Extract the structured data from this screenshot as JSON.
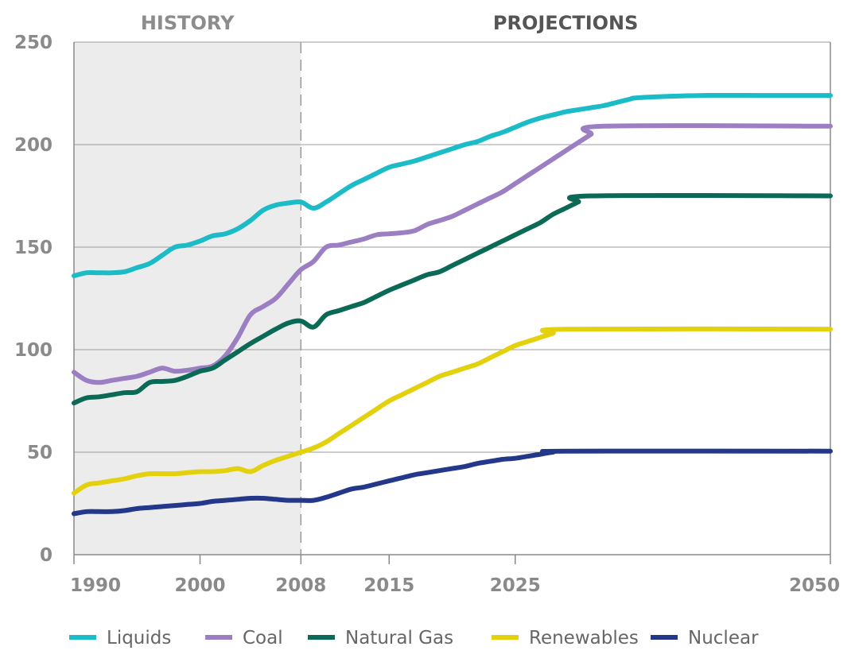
{
  "chart_data": {
    "type": "line",
    "title": "",
    "xlabel": "",
    "ylabel": "",
    "xlim": [
      1990,
      2050
    ],
    "ylim": [
      0,
      250
    ],
    "x_ticks": [
      1990,
      2000,
      2008,
      2015,
      2025,
      2050
    ],
    "y_ticks": [
      0,
      50,
      100,
      150,
      200,
      250
    ],
    "grid": "horizontal",
    "legend_position": "bottom",
    "regions": [
      {
        "label": "HISTORY",
        "from": 1990,
        "to": 2008,
        "shaded": true
      },
      {
        "label": "PROJECTIONS",
        "from": 2008,
        "to": 2050,
        "shaded": false
      }
    ],
    "series": [
      {
        "name": "Liquids",
        "color": "#1bbcc8",
        "points": [
          [
            1990,
            136
          ],
          [
            1991,
            137.5
          ],
          [
            1992,
            137.5
          ],
          [
            1993,
            137.5
          ],
          [
            1994,
            138
          ],
          [
            1995,
            140
          ],
          [
            1996,
            142
          ],
          [
            1997,
            146
          ],
          [
            1998,
            150
          ],
          [
            1999,
            151
          ],
          [
            2000,
            153
          ],
          [
            2001,
            155.5
          ],
          [
            2002,
            156.5
          ],
          [
            2003,
            159
          ],
          [
            2004,
            163
          ],
          [
            2005,
            168
          ],
          [
            2006,
            170.5
          ],
          [
            2007,
            171.5
          ],
          [
            2008,
            172
          ],
          [
            2009,
            169
          ],
          [
            2010,
            172
          ],
          [
            2011,
            176
          ],
          [
            2012,
            180
          ],
          [
            2013,
            183
          ],
          [
            2014,
            186
          ],
          [
            2015,
            189
          ],
          [
            2016,
            190.5
          ],
          [
            2017,
            192
          ],
          [
            2018,
            194
          ],
          [
            2019,
            196
          ],
          [
            2020,
            198
          ],
          [
            2021,
            200
          ],
          [
            2022,
            201.5
          ],
          [
            2023,
            204
          ],
          [
            2024,
            206
          ],
          [
            2025,
            208.5
          ],
          [
            2026,
            211
          ],
          [
            2027,
            213
          ],
          [
            2028,
            214.5
          ],
          [
            2029,
            216
          ],
          [
            2030,
            217
          ],
          [
            2031,
            218
          ],
          [
            2032,
            219
          ],
          [
            2033,
            220.5
          ],
          [
            2034,
            222
          ],
          [
            2035,
            223
          ],
          [
            2040,
            224
          ],
          [
            2045,
            224
          ],
          [
            2050,
            224
          ]
        ]
      },
      {
        "name": "Coal",
        "color": "#9b7fc2",
        "points": [
          [
            1990,
            89
          ],
          [
            1991,
            85
          ],
          [
            1992,
            84
          ],
          [
            1993,
            85
          ],
          [
            1994,
            86
          ],
          [
            1995,
            87
          ],
          [
            1996,
            89
          ],
          [
            1997,
            91
          ],
          [
            1998,
            89.5
          ],
          [
            1999,
            90
          ],
          [
            2000,
            91
          ],
          [
            2001,
            92
          ],
          [
            2002,
            97
          ],
          [
            2003,
            106
          ],
          [
            2004,
            117
          ],
          [
            2005,
            121
          ],
          [
            2006,
            125
          ],
          [
            2007,
            132
          ],
          [
            2008,
            139
          ],
          [
            2009,
            143
          ],
          [
            2010,
            150
          ],
          [
            2011,
            151
          ],
          [
            2012,
            152.5
          ],
          [
            2013,
            154
          ],
          [
            2014,
            156
          ],
          [
            2015,
            156.5
          ],
          [
            2016,
            157
          ],
          [
            2017,
            158
          ],
          [
            2018,
            161
          ],
          [
            2019,
            163
          ],
          [
            2020,
            165
          ],
          [
            2021,
            168
          ],
          [
            2022,
            171
          ],
          [
            2023,
            174
          ],
          [
            2024,
            177
          ],
          [
            2025,
            181
          ],
          [
            2026,
            185
          ],
          [
            2027,
            189
          ],
          [
            2028,
            193
          ],
          [
            2029,
            197
          ],
          [
            2030,
            201
          ],
          [
            2031,
            205
          ],
          [
            2032,
            209
          ],
          [
            2050,
            209
          ]
        ]
      },
      {
        "name": "Natural Gas",
        "color": "#0b6a55",
        "points": [
          [
            1990,
            74
          ],
          [
            1991,
            76.5
          ],
          [
            1992,
            77
          ],
          [
            1993,
            78
          ],
          [
            1994,
            79
          ],
          [
            1995,
            79.5
          ],
          [
            1996,
            84
          ],
          [
            1997,
            84.5
          ],
          [
            1998,
            85
          ],
          [
            1999,
            87
          ],
          [
            2000,
            89.5
          ],
          [
            2001,
            91
          ],
          [
            2002,
            95
          ],
          [
            2003,
            99
          ],
          [
            2004,
            103
          ],
          [
            2005,
            106.5
          ],
          [
            2006,
            110
          ],
          [
            2007,
            113
          ],
          [
            2008,
            114
          ],
          [
            2009,
            111
          ],
          [
            2010,
            117
          ],
          [
            2011,
            119
          ],
          [
            2012,
            121
          ],
          [
            2013,
            123
          ],
          [
            2014,
            126
          ],
          [
            2015,
            129
          ],
          [
            2016,
            131.5
          ],
          [
            2017,
            134
          ],
          [
            2018,
            136.5
          ],
          [
            2019,
            138
          ],
          [
            2020,
            141
          ],
          [
            2021,
            144
          ],
          [
            2022,
            147
          ],
          [
            2023,
            150
          ],
          [
            2024,
            153
          ],
          [
            2025,
            156
          ],
          [
            2026,
            159
          ],
          [
            2027,
            162
          ],
          [
            2028,
            166
          ],
          [
            2029,
            169
          ],
          [
            2030,
            172
          ],
          [
            2031,
            175
          ],
          [
            2050,
            175
          ]
        ]
      },
      {
        "name": "Renewables",
        "color": "#e2d10c",
        "points": [
          [
            1990,
            30
          ],
          [
            1991,
            34
          ],
          [
            1992,
            35
          ],
          [
            1993,
            36
          ],
          [
            1994,
            37
          ],
          [
            1995,
            38.5
          ],
          [
            1996,
            39.5
          ],
          [
            1997,
            39.5
          ],
          [
            1998,
            39.5
          ],
          [
            1999,
            40
          ],
          [
            2000,
            40.5
          ],
          [
            2001,
            40.5
          ],
          [
            2002,
            41
          ],
          [
            2003,
            42
          ],
          [
            2004,
            40.5
          ],
          [
            2005,
            43.5
          ],
          [
            2006,
            46
          ],
          [
            2007,
            48
          ],
          [
            2008,
            50
          ],
          [
            2009,
            52
          ],
          [
            2010,
            55
          ],
          [
            2011,
            59
          ],
          [
            2012,
            63
          ],
          [
            2013,
            67
          ],
          [
            2014,
            71
          ],
          [
            2015,
            75
          ],
          [
            2016,
            78
          ],
          [
            2017,
            81
          ],
          [
            2018,
            84
          ],
          [
            2019,
            87
          ],
          [
            2020,
            89
          ],
          [
            2021,
            91
          ],
          [
            2022,
            93
          ],
          [
            2023,
            96
          ],
          [
            2024,
            99
          ],
          [
            2025,
            102
          ],
          [
            2026,
            104
          ],
          [
            2027,
            106
          ],
          [
            2028,
            108
          ],
          [
            2029,
            110
          ],
          [
            2050,
            110
          ]
        ]
      },
      {
        "name": "Nuclear",
        "color": "#23378b",
        "points": [
          [
            1990,
            20
          ],
          [
            1991,
            21
          ],
          [
            1992,
            21
          ],
          [
            1993,
            21
          ],
          [
            1994,
            21.5
          ],
          [
            1995,
            22.5
          ],
          [
            1996,
            23
          ],
          [
            1997,
            23.5
          ],
          [
            1998,
            24
          ],
          [
            1999,
            24.5
          ],
          [
            2000,
            25
          ],
          [
            2001,
            26
          ],
          [
            2002,
            26.5
          ],
          [
            2003,
            27
          ],
          [
            2004,
            27.5
          ],
          [
            2005,
            27.5
          ],
          [
            2006,
            27
          ],
          [
            2007,
            26.5
          ],
          [
            2008,
            26.5
          ],
          [
            2009,
            26.5
          ],
          [
            2010,
            28
          ],
          [
            2011,
            30
          ],
          [
            2012,
            32
          ],
          [
            2013,
            33
          ],
          [
            2014,
            34.5
          ],
          [
            2015,
            36
          ],
          [
            2016,
            37.5
          ],
          [
            2017,
            39
          ],
          [
            2018,
            40
          ],
          [
            2019,
            41
          ],
          [
            2020,
            42
          ],
          [
            2021,
            43
          ],
          [
            2022,
            44.5
          ],
          [
            2023,
            45.5
          ],
          [
            2024,
            46.5
          ],
          [
            2025,
            47
          ],
          [
            2026,
            48
          ],
          [
            2027,
            49
          ],
          [
            2028,
            50
          ],
          [
            2029,
            50.5
          ],
          [
            2050,
            50.5
          ]
        ]
      }
    ]
  }
}
